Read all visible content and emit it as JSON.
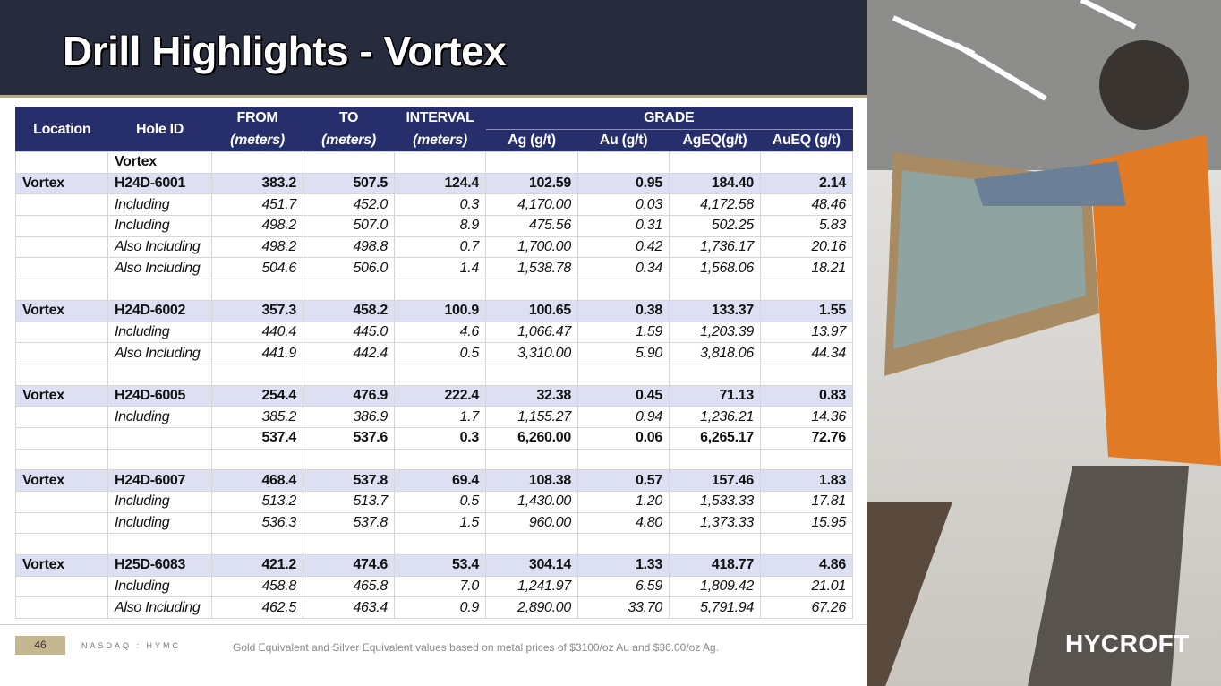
{
  "header": {
    "title": "Drill Highlights - Vortex"
  },
  "table": {
    "columns": {
      "location": "Location",
      "hole_id": "Hole ID",
      "from": "FROM",
      "to": "TO",
      "interval": "INTERVAL",
      "unit": "(meters)",
      "grade": "GRADE",
      "grades": [
        "Ag (g/t)",
        "Au (g/t)",
        "AgEQ(g/t)",
        "AuEQ (g/t)"
      ]
    },
    "rows": [
      [
        null,
        "Vortex",
        null,
        null,
        null,
        null,
        null,
        null,
        null
      ],
      [
        "Vortex",
        "H24D-6001",
        "383.2",
        "507.5",
        "124.4",
        "102.59",
        "0.95",
        "184.40",
        "2.14"
      ],
      [
        null,
        "Including",
        "451.7",
        "452.0",
        "0.3",
        "4,170.00",
        "0.03",
        "4,172.58",
        "48.46"
      ],
      [
        null,
        "Including",
        "498.2",
        "507.0",
        "8.9",
        "475.56",
        "0.31",
        "502.25",
        "5.83"
      ],
      [
        null,
        "Also Including",
        "498.2",
        "498.8",
        "0.7",
        "1,700.00",
        "0.42",
        "1,736.17",
        "20.16"
      ],
      [
        null,
        "Also Including",
        "504.6",
        "506.0",
        "1.4",
        "1,538.78",
        "0.34",
        "1,568.06",
        "18.21"
      ],
      [
        null,
        null,
        null,
        null,
        null,
        null,
        null,
        null,
        null
      ],
      [
        "Vortex",
        "H24D-6002",
        "357.3",
        "458.2",
        "100.9",
        "100.65",
        "0.38",
        "133.37",
        "1.55"
      ],
      [
        null,
        "Including",
        "440.4",
        "445.0",
        "4.6",
        "1,066.47",
        "1.59",
        "1,203.39",
        "13.97"
      ],
      [
        null,
        "Also Including",
        "441.9",
        "442.4",
        "0.5",
        "3,310.00",
        "5.90",
        "3,818.06",
        "44.34"
      ],
      [
        null,
        null,
        null,
        null,
        null,
        null,
        null,
        null,
        null
      ],
      [
        "Vortex",
        "H24D-6005",
        "254.4",
        "476.9",
        "222.4",
        "32.38",
        "0.45",
        "71.13",
        "0.83"
      ],
      [
        null,
        "Including",
        "385.2",
        "386.9",
        "1.7",
        "1,155.27",
        "0.94",
        "1,236.21",
        "14.36"
      ],
      [
        null,
        null,
        "537.4",
        "537.6",
        "0.3",
        "6,260.00",
        "0.06",
        "6,265.17",
        "72.76"
      ],
      [
        null,
        null,
        null,
        null,
        null,
        null,
        null,
        null,
        null
      ],
      [
        "Vortex",
        "H24D-6007",
        "468.4",
        "537.8",
        "69.4",
        "108.38",
        "0.57",
        "157.46",
        "1.83"
      ],
      [
        null,
        "Including",
        "513.2",
        "513.7",
        "0.5",
        "1,430.00",
        "1.20",
        "1,533.33",
        "17.81"
      ],
      [
        null,
        "Including",
        "536.3",
        "537.8",
        "1.5",
        "960.00",
        "4.80",
        "1,373.33",
        "15.95"
      ],
      [
        null,
        null,
        null,
        null,
        null,
        null,
        null,
        null,
        null
      ],
      [
        "Vortex",
        "H25D-6083",
        "421.2",
        "474.6",
        "53.4",
        "304.14",
        "1.33",
        "418.77",
        "4.86"
      ],
      [
        null,
        "Including",
        "458.8",
        "465.8",
        "7.0",
        "1,241.97",
        "6.59",
        "1,809.42",
        "21.01"
      ],
      [
        null,
        "Also Including",
        "462.5",
        "463.4",
        "0.9",
        "2,890.00",
        "33.70",
        "5,791.94",
        "67.26"
      ]
    ]
  },
  "footer": {
    "page": "46",
    "ticker": "NASDAQ : HYMC",
    "note": "Gold Equivalent and Silver Equivalent values based on metal prices of $3100/oz Au and $36.00/oz Ag.",
    "logo": "HYCROFT"
  }
}
